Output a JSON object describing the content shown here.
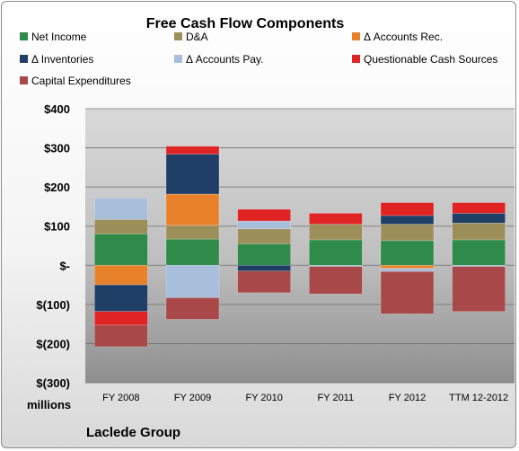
{
  "chart_data": {
    "type": "bar",
    "stacked": true,
    "title": "Free Cash Flow Components",
    "categories": [
      "FY 2008",
      "FY 2009",
      "FY 2010",
      "FY 2011",
      "FY 2012",
      "TTM 12-2012"
    ],
    "ylim": [
      -300,
      400
    ],
    "yticks": [
      400,
      300,
      200,
      100,
      0,
      -100,
      -200,
      -300
    ],
    "ytick_labels": [
      "$400",
      "$300",
      "$200",
      "$100",
      "$-",
      "$(100)",
      "$(200)",
      "$(300)"
    ],
    "yunit": "millions",
    "grid": true,
    "legend_placement": "top",
    "series": [
      {
        "name": "Net Income",
        "color": "#2e8b4a",
        "values": [
          80,
          67,
          55,
          65,
          63,
          65
        ]
      },
      {
        "name": "D&A",
        "color": "#9c8f5a",
        "values": [
          37,
          35,
          38,
          40,
          42,
          43
        ]
      },
      {
        "name": "Δ Accounts Rec.",
        "color": "#e8822a",
        "values": [
          -50,
          80,
          0,
          0,
          -8,
          0
        ]
      },
      {
        "name": "Δ Inventories",
        "color": "#1f3f66",
        "values": [
          -68,
          102,
          -15,
          0,
          22,
          25
        ]
      },
      {
        "name": "Δ Accounts Pay.",
        "color": "#a8bfdc",
        "values": [
          55,
          -83,
          20,
          -3,
          -8,
          -3
        ]
      },
      {
        "name": "Questionable Cash Sources",
        "color": "#e02424",
        "values": [
          -35,
          20,
          30,
          28,
          33,
          27
        ]
      },
      {
        "name": "Capital Expenditures",
        "color": "#a84848",
        "values": [
          -55,
          -55,
          -55,
          -70,
          -108,
          -115
        ]
      }
    ]
  },
  "footer": {
    "company": "Laclede Group"
  }
}
